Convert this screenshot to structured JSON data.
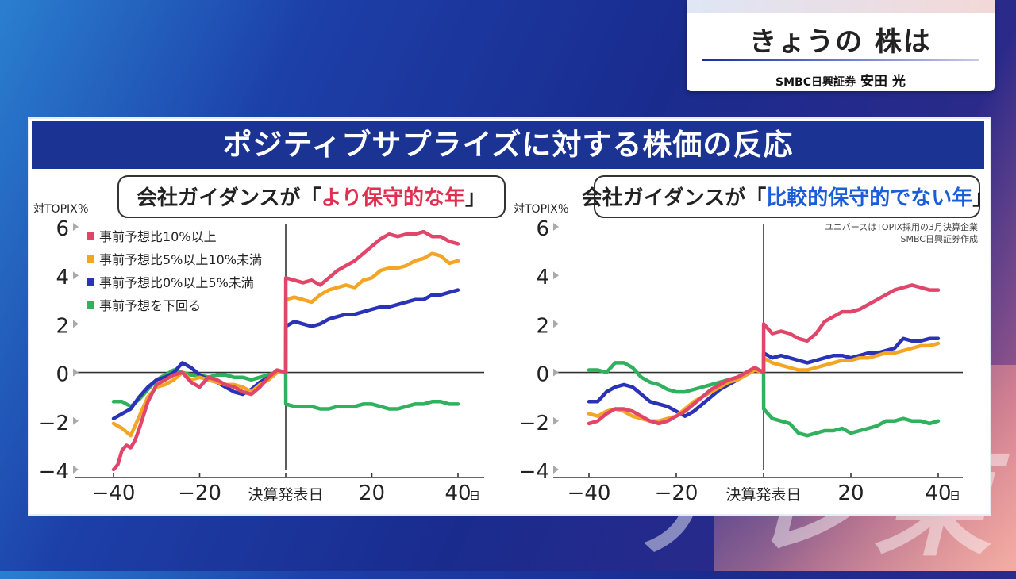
{
  "header_card": {
    "title": "きょうの 株は",
    "subtitle_org": "SMBC日興証券",
    "subtitle_name": "安田 光"
  },
  "panel": {
    "title": "ポジティブサプライズに対する株価の反応"
  },
  "background_text": "テレ東",
  "colors": {
    "header_bg": "#1b3393",
    "red": "#e0456a",
    "orange": "#f5a524",
    "blue": "#2a32b5",
    "green": "#2fb15e",
    "highlight_red": "#e0304f",
    "highlight_blue": "#1c5ed8"
  },
  "chart_data": [
    {
      "type": "line",
      "label_prefix": "会社ガイダンスが「",
      "label_highlight": "より保守的な年",
      "label_suffix": "」",
      "ylabel": "対TOPIX％",
      "ylim": [
        -4,
        6
      ],
      "yticks": [
        "6",
        "4",
        "2",
        "0",
        "−2",
        "−4"
      ],
      "xlim": [
        -45,
        45
      ],
      "xticks": [
        "−40",
        "−20",
        "決算発表日",
        "20",
        "40"
      ],
      "x_unit": "日",
      "legend": [
        "事前予想比10%以上",
        "事前予想比5%以上10%未満",
        "事前予想比0%以上5%未満",
        "事前予想を下回る"
      ],
      "series": [
        {
          "name": "事前予想比10%以上",
          "color": "red",
          "x": [
            -40,
            -39,
            -38,
            -37,
            -36,
            -35,
            -34,
            -32,
            -30,
            -28,
            -26,
            -24,
            -22,
            -20,
            -18,
            -16,
            -14,
            -12,
            -10,
            -8,
            -6,
            -4,
            -2,
            0,
            0.01,
            2,
            4,
            6,
            8,
            10,
            12,
            14,
            16,
            18,
            20,
            22,
            24,
            26,
            28,
            30,
            32,
            34,
            36,
            38,
            40
          ],
          "y": [
            -4.0,
            -3.8,
            -3.2,
            -3.0,
            -3.1,
            -2.8,
            -2.3,
            -1.2,
            -0.5,
            -0.3,
            -0.1,
            0.0,
            -0.4,
            -0.6,
            -0.2,
            -0.3,
            -0.5,
            -0.6,
            -0.8,
            -0.9,
            -0.6,
            -0.2,
            0.1,
            0.0,
            3.9,
            3.8,
            3.7,
            3.8,
            3.6,
            3.9,
            4.2,
            4.4,
            4.6,
            4.9,
            5.2,
            5.5,
            5.7,
            5.6,
            5.7,
            5.7,
            5.8,
            5.6,
            5.6,
            5.4,
            5.3
          ]
        },
        {
          "name": "事前予想比5%以上10%未満",
          "color": "orange",
          "x": [
            -40,
            -38,
            -36,
            -34,
            -32,
            -30,
            -28,
            -26,
            -24,
            -22,
            -20,
            -18,
            -16,
            -14,
            -12,
            -10,
            -8,
            -6,
            -4,
            -2,
            0,
            0.01,
            2,
            4,
            6,
            8,
            10,
            12,
            14,
            16,
            18,
            20,
            22,
            24,
            26,
            28,
            30,
            32,
            34,
            36,
            38,
            40
          ],
          "y": [
            -2.1,
            -2.3,
            -2.6,
            -1.8,
            -1.0,
            -0.6,
            -0.5,
            -0.3,
            0.0,
            -0.3,
            -0.2,
            -0.3,
            -0.4,
            -0.5,
            -0.5,
            -0.6,
            -0.8,
            -0.5,
            -0.3,
            0.0,
            0.0,
            3.0,
            3.1,
            3.0,
            2.9,
            3.2,
            3.4,
            3.5,
            3.6,
            3.5,
            3.8,
            3.9,
            4.2,
            4.3,
            4.3,
            4.4,
            4.6,
            4.7,
            4.9,
            4.8,
            4.5,
            4.6
          ]
        },
        {
          "name": "事前予想比0%以上5%未満",
          "color": "blue",
          "x": [
            -40,
            -38,
            -36,
            -34,
            -32,
            -30,
            -28,
            -26,
            -24,
            -22,
            -20,
            -18,
            -16,
            -14,
            -12,
            -10,
            -8,
            -6,
            -4,
            -2,
            0,
            0.01,
            2,
            4,
            6,
            8,
            10,
            12,
            14,
            16,
            18,
            20,
            22,
            24,
            26,
            28,
            30,
            32,
            34,
            36,
            38,
            40
          ],
          "y": [
            -1.9,
            -1.7,
            -1.5,
            -1.0,
            -0.6,
            -0.3,
            -0.2,
            0.0,
            0.4,
            0.2,
            -0.1,
            -0.3,
            -0.4,
            -0.6,
            -0.8,
            -0.9,
            -0.7,
            -0.4,
            -0.2,
            0.0,
            0.0,
            1.9,
            2.1,
            2.0,
            1.9,
            2.0,
            2.2,
            2.3,
            2.4,
            2.4,
            2.5,
            2.6,
            2.7,
            2.7,
            2.8,
            2.9,
            3.0,
            3.0,
            3.2,
            3.2,
            3.3,
            3.4
          ]
        },
        {
          "name": "事前予想を下回る",
          "color": "green",
          "x": [
            -40,
            -38,
            -36,
            -34,
            -32,
            -30,
            -28,
            -26,
            -24,
            -22,
            -20,
            -18,
            -16,
            -14,
            -12,
            -10,
            -8,
            -6,
            -4,
            -2,
            0,
            0.01,
            2,
            4,
            6,
            8,
            10,
            12,
            14,
            16,
            18,
            20,
            22,
            24,
            26,
            28,
            30,
            32,
            34,
            36,
            38,
            40
          ],
          "y": [
            -1.2,
            -1.2,
            -1.4,
            -1.1,
            -0.7,
            -0.3,
            -0.1,
            0.1,
            0.0,
            -0.1,
            -0.1,
            -0.2,
            -0.1,
            -0.1,
            -0.2,
            -0.2,
            -0.3,
            -0.2,
            -0.1,
            0.0,
            0.0,
            -1.3,
            -1.4,
            -1.4,
            -1.4,
            -1.5,
            -1.5,
            -1.4,
            -1.4,
            -1.4,
            -1.3,
            -1.3,
            -1.4,
            -1.5,
            -1.5,
            -1.4,
            -1.3,
            -1.3,
            -1.2,
            -1.2,
            -1.3,
            -1.3
          ]
        }
      ]
    },
    {
      "type": "line",
      "label_prefix": "会社ガイダンスが「",
      "label_highlight": "比較的保守的でない年",
      "label_suffix": "」",
      "ylabel": "対TOPIX％",
      "ylim": [
        -4,
        6
      ],
      "yticks": [
        "6",
        "4",
        "2",
        "0",
        "−2",
        "−4"
      ],
      "xlim": [
        -45,
        45
      ],
      "xticks": [
        "−40",
        "−20",
        "決算発表日",
        "20",
        "40"
      ],
      "x_unit": "日",
      "note_line1": "ユニバースはTOPIX採用の3月決算企業",
      "note_line2": "SMBC日興証券作成",
      "series": [
        {
          "name": "事前予想比10%以上",
          "color": "red",
          "x": [
            -40,
            -38,
            -36,
            -34,
            -32,
            -30,
            -28,
            -26,
            -24,
            -22,
            -20,
            -18,
            -16,
            -14,
            -12,
            -10,
            -8,
            -6,
            -4,
            -2,
            0,
            0.01,
            2,
            4,
            6,
            8,
            10,
            12,
            14,
            16,
            18,
            20,
            22,
            24,
            26,
            28,
            30,
            32,
            34,
            36,
            38,
            40
          ],
          "y": [
            -2.1,
            -2.0,
            -1.7,
            -1.5,
            -1.5,
            -1.6,
            -1.8,
            -2.0,
            -2.1,
            -2.0,
            -1.8,
            -1.6,
            -1.3,
            -1.0,
            -0.7,
            -0.5,
            -0.3,
            -0.2,
            0.0,
            0.2,
            0.0,
            2.0,
            1.6,
            1.7,
            1.6,
            1.4,
            1.3,
            1.6,
            2.1,
            2.3,
            2.5,
            2.5,
            2.6,
            2.8,
            3.0,
            3.2,
            3.4,
            3.5,
            3.6,
            3.5,
            3.4,
            3.4
          ]
        },
        {
          "name": "事前予想比5%以上10%未満",
          "color": "orange",
          "x": [
            -40,
            -38,
            -36,
            -34,
            -32,
            -30,
            -28,
            -26,
            -24,
            -22,
            -20,
            -18,
            -16,
            -14,
            -12,
            -10,
            -8,
            -6,
            -4,
            -2,
            0,
            0.01,
            2,
            4,
            6,
            8,
            10,
            12,
            14,
            16,
            18,
            20,
            22,
            24,
            26,
            28,
            30,
            32,
            34,
            36,
            38,
            40
          ],
          "y": [
            -1.7,
            -1.8,
            -1.6,
            -1.5,
            -1.6,
            -1.8,
            -1.9,
            -2.0,
            -2.0,
            -1.9,
            -1.8,
            -1.5,
            -1.2,
            -1.0,
            -0.8,
            -0.6,
            -0.4,
            -0.3,
            -0.1,
            0.1,
            0.0,
            0.6,
            0.4,
            0.3,
            0.2,
            0.1,
            0.1,
            0.2,
            0.3,
            0.4,
            0.5,
            0.5,
            0.6,
            0.6,
            0.7,
            0.8,
            0.8,
            0.9,
            1.0,
            1.1,
            1.1,
            1.2
          ]
        },
        {
          "name": "事前予想比0%以上5%未満",
          "color": "blue",
          "x": [
            -40,
            -38,
            -36,
            -34,
            -32,
            -30,
            -28,
            -26,
            -24,
            -22,
            -20,
            -18,
            -16,
            -14,
            -12,
            -10,
            -8,
            -6,
            -4,
            -2,
            0,
            0.01,
            2,
            4,
            6,
            8,
            10,
            12,
            14,
            16,
            18,
            20,
            22,
            24,
            26,
            28,
            30,
            32,
            34,
            36,
            38,
            40
          ],
          "y": [
            -1.2,
            -1.2,
            -0.8,
            -0.6,
            -0.5,
            -0.6,
            -0.9,
            -1.2,
            -1.3,
            -1.4,
            -1.6,
            -1.8,
            -1.6,
            -1.3,
            -1.0,
            -0.7,
            -0.5,
            -0.3,
            -0.1,
            0.1,
            0.0,
            0.8,
            0.6,
            0.7,
            0.6,
            0.5,
            0.4,
            0.5,
            0.6,
            0.7,
            0.7,
            0.6,
            0.7,
            0.8,
            0.8,
            0.9,
            1.0,
            1.4,
            1.3,
            1.3,
            1.4,
            1.4
          ]
        },
        {
          "name": "事前予想を下回る",
          "color": "green",
          "x": [
            -40,
            -38,
            -36,
            -34,
            -32,
            -30,
            -28,
            -26,
            -24,
            -22,
            -20,
            -18,
            -16,
            -14,
            -12,
            -10,
            -8,
            -6,
            -4,
            -2,
            0,
            0.01,
            2,
            4,
            6,
            8,
            10,
            12,
            14,
            16,
            18,
            20,
            22,
            24,
            26,
            28,
            30,
            32,
            34,
            36,
            38,
            40
          ],
          "y": [
            0.1,
            0.1,
            0.0,
            0.4,
            0.4,
            0.2,
            -0.2,
            -0.4,
            -0.5,
            -0.7,
            -0.8,
            -0.8,
            -0.7,
            -0.6,
            -0.5,
            -0.4,
            -0.3,
            -0.2,
            0.0,
            0.2,
            0.0,
            -1.5,
            -1.9,
            -2.0,
            -2.1,
            -2.5,
            -2.6,
            -2.5,
            -2.4,
            -2.4,
            -2.3,
            -2.5,
            -2.4,
            -2.3,
            -2.2,
            -2.0,
            -2.0,
            -1.9,
            -2.0,
            -2.0,
            -2.1,
            -2.0
          ]
        }
      ]
    }
  ]
}
